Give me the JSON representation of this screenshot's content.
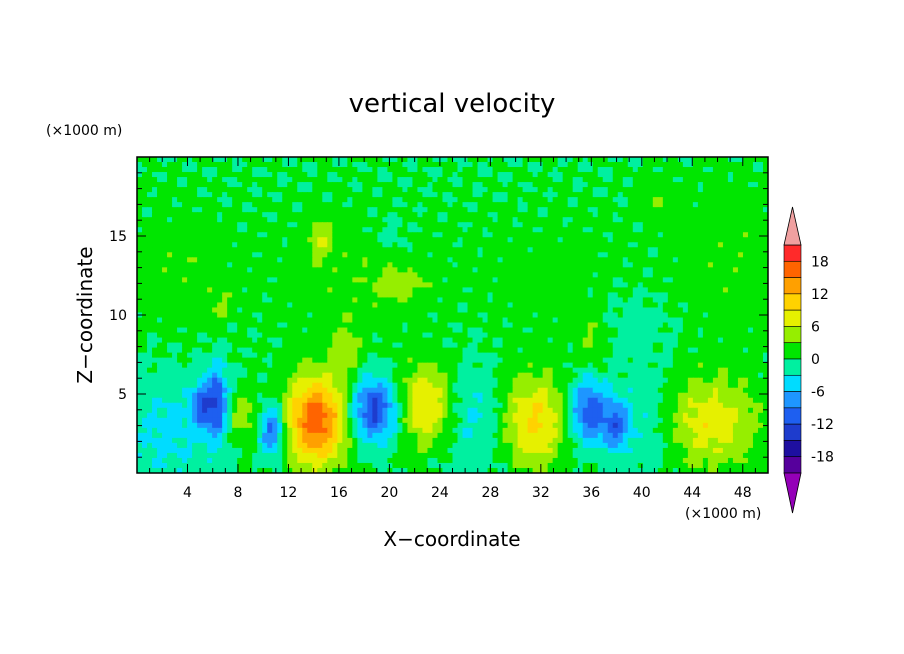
{
  "chart_data": {
    "type": "heatmap",
    "title": "vertical velocity",
    "xlabel": "X−coordinate",
    "ylabel": "Z−coordinate",
    "x_units": "(×1000 m)",
    "y_units": "(×1000 m)",
    "xlim": [
      0,
      50
    ],
    "ylim": [
      0,
      20
    ],
    "x_ticks": [
      4,
      8,
      12,
      16,
      20,
      24,
      28,
      32,
      36,
      40,
      44,
      48
    ],
    "y_ticks": [
      5,
      10,
      15
    ],
    "colorbar": {
      "levels": [
        -21,
        -18,
        -15,
        -12,
        -9,
        -6,
        -3,
        0,
        3,
        6,
        9,
        12,
        15,
        18,
        21
      ],
      "tick_labels": [
        18,
        12,
        6,
        0,
        -6,
        -12,
        -18
      ],
      "colors": [
        "#9400b8",
        "#56009c",
        "#1e0fa0",
        "#1e3ccd",
        "#1e5ff0",
        "#1e96ff",
        "#00dcff",
        "#00f0a0",
        "#00e600",
        "#96ee00",
        "#e6f000",
        "#ffd200",
        "#ffa000",
        "#ff6400",
        "#ff2a2a",
        "#f0a0a0"
      ],
      "extend": "both"
    },
    "background_value": 0,
    "features": [
      {
        "x": 14.2,
        "z": 3.3,
        "sx": 1.7,
        "sz": 2.0,
        "w": 17
      },
      {
        "x": 23.0,
        "z": 4.2,
        "sx": 1.6,
        "sz": 1.9,
        "w": 10
      },
      {
        "x": 31.4,
        "z": 3.3,
        "sx": 1.9,
        "sz": 2.1,
        "w": 10
      },
      {
        "x": 45.5,
        "z": 3.2,
        "sx": 2.6,
        "sz": 2.0,
        "w": 8
      },
      {
        "x": 8.3,
        "z": 3.6,
        "sx": 1.0,
        "sz": 1.2,
        "w": 5
      },
      {
        "x": 5.0,
        "z": 4.2,
        "sx": 0.5,
        "sz": 0.9,
        "w": -8
      },
      {
        "x": 6.3,
        "z": 4.4,
        "sx": 0.7,
        "sz": 1.6,
        "w": -12
      },
      {
        "x": 10.7,
        "z": 2.7,
        "sx": 0.7,
        "sz": 1.2,
        "w": -11
      },
      {
        "x": 18.8,
        "z": 4.0,
        "sx": 1.3,
        "sz": 1.4,
        "w": -13
      },
      {
        "x": 35.8,
        "z": 3.8,
        "sx": 1.1,
        "sz": 1.4,
        "w": -12
      },
      {
        "x": 38.0,
        "z": 3.0,
        "sx": 0.7,
        "sz": 1.2,
        "w": -9
      },
      {
        "x": 26.5,
        "z": 3.5,
        "sx": 2.5,
        "sz": 2.4,
        "w": -4
      },
      {
        "x": 2.5,
        "z": 2.5,
        "sx": 2.5,
        "sz": 2.4,
        "w": -4
      },
      {
        "x": 40.5,
        "z": 3.5,
        "sx": 1.5,
        "sz": 2.4,
        "w": -3
      },
      {
        "x": 17.0,
        "z": 12.5,
        "sx": 5.0,
        "sz": 3.0,
        "w": 2
      },
      {
        "x": 47.0,
        "z": 13.5,
        "sx": 3.5,
        "sz": 4.0,
        "w": 2
      },
      {
        "x": 3.0,
        "z": 13.0,
        "sx": 3.5,
        "sz": 3.0,
        "w": 2
      },
      {
        "x": 33.0,
        "z": 12.5,
        "sx": 5.0,
        "sz": 3.0,
        "w": 1.5
      },
      {
        "x": 14.6,
        "z": 14.8,
        "sx": 0.7,
        "sz": 0.9,
        "w": 5
      },
      {
        "x": 16.6,
        "z": 7.8,
        "sx": 0.8,
        "sz": 1.2,
        "w": 4
      },
      {
        "x": 21.0,
        "z": 12.0,
        "sx": 1.5,
        "sz": 0.8,
        "w": 3.5
      },
      {
        "x": 36.0,
        "z": 8.5,
        "sx": 0.8,
        "sz": 1.0,
        "w": 3
      },
      {
        "x": 6.5,
        "z": 10.5,
        "sx": 0.6,
        "sz": 0.8,
        "w": 3
      },
      {
        "x": 41.0,
        "z": 17.5,
        "sx": 1.0,
        "sz": 1.0,
        "w": 2.5
      },
      {
        "x": 20.0,
        "z": 15.0,
        "sx": 1.2,
        "sz": 0.8,
        "w": -2
      },
      {
        "x": 39.5,
        "z": 9.5,
        "sx": 2.0,
        "sz": 1.5,
        "w": -2
      }
    ]
  }
}
